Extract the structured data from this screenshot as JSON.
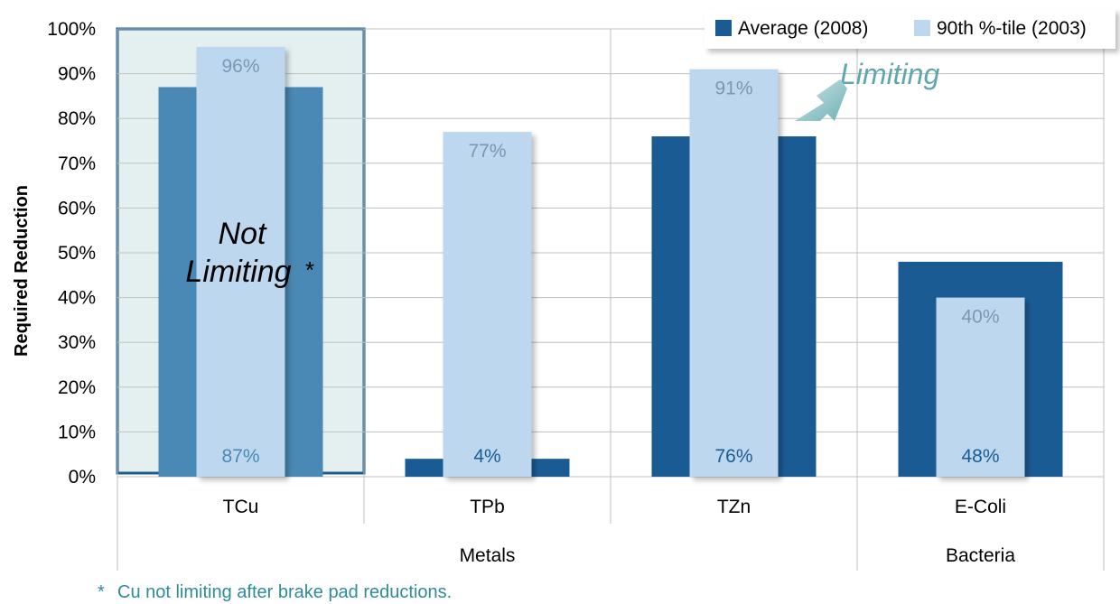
{
  "chart_data": {
    "type": "bar",
    "categories": [
      "TCu",
      "TPb",
      "TZn",
      "E-Coli"
    ],
    "groups": [
      {
        "label": "Metals",
        "categories": [
          "TCu",
          "TPb",
          "TZn"
        ]
      },
      {
        "label": "Bacteria",
        "categories": [
          "E-Coli"
        ]
      }
    ],
    "series": [
      {
        "name": "Average (2008)",
        "values": [
          87,
          4,
          76,
          48
        ],
        "color": "#1b5b94"
      },
      {
        "name": "90th %-tile (2003)",
        "values": [
          96,
          77,
          91,
          40
        ],
        "color": "#bdd7ee"
      }
    ],
    "data_labels": {
      "Average (2008)": [
        "87%",
        "4%",
        "76%",
        "48%"
      ],
      "90th %-tile (2003)": [
        "96%",
        "77%",
        "91%",
        "40%"
      ]
    },
    "ylabel": "Required Reduction",
    "xlabel": "",
    "ylim": [
      0,
      100
    ],
    "yticks": [
      "0%",
      "10%",
      "20%",
      "30%",
      "40%",
      "50%",
      "60%",
      "70%",
      "80%",
      "90%",
      "100%"
    ],
    "grid": true,
    "legend_position": "top-right"
  },
  "annotations": {
    "limiting": "Limiting",
    "not_limiting_line1": "Not",
    "not_limiting_line2": "Limiting",
    "not_limiting_star": "*",
    "footnote_star": "*",
    "footnote_text": "Cu not limiting after brake pad reductions."
  },
  "colors": {
    "average_dark": "#1b5b94",
    "average_muted": "#4a89b5",
    "tile_light": "#bdd7ee",
    "highlight_fill": "#e4f0f0",
    "highlight_border": "#1f5d8a",
    "limiting_text": "#5ea7ad",
    "grid": "#bfbfbf"
  }
}
